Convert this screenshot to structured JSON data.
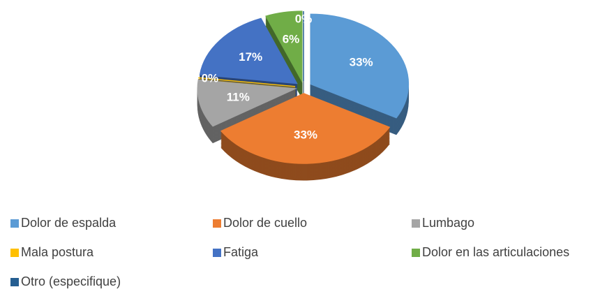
{
  "chart_data": {
    "type": "pie",
    "categories": [
      "Dolor de espalda",
      "Dolor de cuello",
      "Lumbago",
      "Mala postura",
      "Fatiga",
      "Dolor en las articulaciones",
      "Otro (especifique)"
    ],
    "values": [
      33,
      33,
      11,
      0,
      17,
      6,
      0
    ],
    "value_labels": [
      "33%",
      "33%",
      "11%",
      "0%",
      "17%",
      "6%",
      "0%"
    ],
    "colors": [
      "#5b9bd5",
      "#ed7d31",
      "#a5a5a5",
      "#ffc000",
      "#4472c4",
      "#70ad47",
      "#255e91"
    ],
    "legend": "bottom"
  }
}
